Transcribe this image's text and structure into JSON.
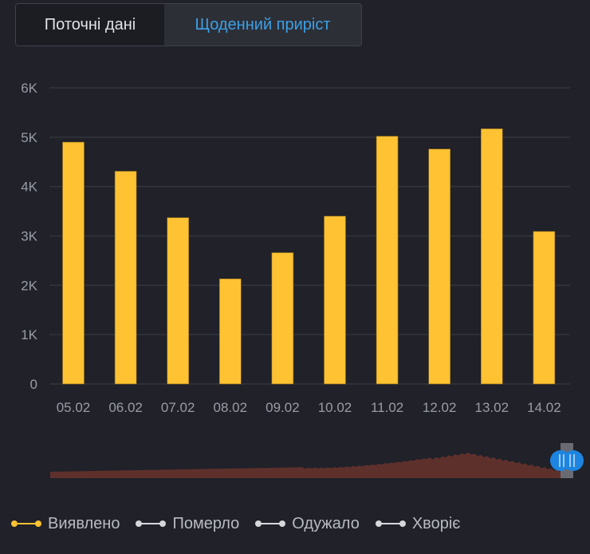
{
  "tabs": [
    {
      "label": "Поточні дані",
      "active": false
    },
    {
      "label": "Щоденний приріст",
      "active": true
    }
  ],
  "colors": {
    "background": "#202129",
    "bar": "#ffc232",
    "grid": "#33343c",
    "axis_text": "#9a9ca6",
    "active_tab": "#3ba0e6",
    "navigator_area": "#5e302c",
    "navigator_handle": "#1d84e0",
    "legend_inactive": "#d6d7db"
  },
  "chart_data": {
    "type": "bar",
    "title": "",
    "xlabel": "",
    "ylabel": "",
    "categories": [
      "05.02",
      "06.02",
      "07.02",
      "08.02",
      "09.02",
      "10.02",
      "11.02",
      "12.02",
      "13.02",
      "14.02"
    ],
    "series": [
      {
        "name": "Виявлено",
        "values": [
          4900,
          4310,
          3370,
          2130,
          2660,
          3400,
          5020,
          4760,
          5170,
          3090
        ]
      }
    ],
    "ylim": [
      0,
      6000
    ],
    "yticks": [
      0,
      1000,
      2000,
      3000,
      4000,
      5000,
      6000
    ],
    "ytick_labels": [
      "0",
      "1K",
      "2K",
      "3K",
      "4K",
      "5K",
      "6K"
    ],
    "grid": true,
    "legend_position": "bottom",
    "navigator": {
      "type": "area",
      "description": "overview of full history, rising to a peak near right then declining",
      "selection_at_end": true
    }
  },
  "legend": [
    {
      "label": "Виявлено",
      "active": true,
      "color": "#ffc232"
    },
    {
      "label": "Померло",
      "active": false,
      "color": "#d6d7db"
    },
    {
      "label": "Одужало",
      "active": false,
      "color": "#d6d7db"
    },
    {
      "label": "Хворіє",
      "active": false,
      "color": "#d6d7db"
    }
  ]
}
